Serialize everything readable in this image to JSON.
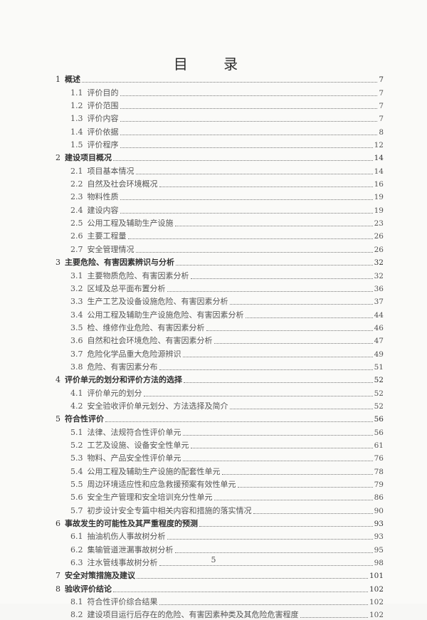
{
  "title": "目 录",
  "entries": [
    {
      "level": 1,
      "num": "1",
      "text": "概述",
      "page": "7"
    },
    {
      "level": 2,
      "num": "1.1",
      "text": "评价目的",
      "page": "7"
    },
    {
      "level": 2,
      "num": "1.2",
      "text": "评价范围",
      "page": "7"
    },
    {
      "level": 2,
      "num": "1.3",
      "text": "评价内容",
      "page": "7"
    },
    {
      "level": 2,
      "num": "1.4",
      "text": "评价依据",
      "page": "8"
    },
    {
      "level": 2,
      "num": "1.5",
      "text": "评价程序",
      "page": "12"
    },
    {
      "level": 1,
      "num": "2",
      "text": "建设项目概况",
      "page": "14"
    },
    {
      "level": 2,
      "num": "2.1",
      "text": "项目基本情况",
      "page": "14"
    },
    {
      "level": 2,
      "num": "2.2",
      "text": "自然及社会环境概况",
      "page": "16"
    },
    {
      "level": 2,
      "num": "2.3",
      "text": "物料性质",
      "page": "19"
    },
    {
      "level": 2,
      "num": "2.4",
      "text": "建设内容",
      "page": "19"
    },
    {
      "level": 2,
      "num": "2.5",
      "text": "公用工程及辅助生产设施",
      "page": "23"
    },
    {
      "level": 2,
      "num": "2.6",
      "text": "主要工程量",
      "page": "26"
    },
    {
      "level": 2,
      "num": "2.7",
      "text": "安全管理情况",
      "page": "26"
    },
    {
      "level": 1,
      "num": "3",
      "text": "主要危险、有害因素辨识与分析",
      "page": "32"
    },
    {
      "level": 2,
      "num": "3.1",
      "text": "主要物质危险、有害因素分析",
      "page": "32"
    },
    {
      "level": 2,
      "num": "3.2",
      "text": "区域及总平面布置分析",
      "page": "36"
    },
    {
      "level": 2,
      "num": "3.3",
      "text": "生产工艺及设备设施危险、有害因素分析",
      "page": "37"
    },
    {
      "level": 2,
      "num": "3.4",
      "text": "公用工程及辅助生产设施危险、有害因素分析",
      "page": "44"
    },
    {
      "level": 2,
      "num": "3.5",
      "text": "检、维修作业危险、有害因素分析",
      "page": "46"
    },
    {
      "level": 2,
      "num": "3.6",
      "text": "自然和社会环境危险、有害因素分析",
      "page": "47"
    },
    {
      "level": 2,
      "num": "3.7",
      "text": "危险化学品重大危险源辨识",
      "page": "49"
    },
    {
      "level": 2,
      "num": "3.8",
      "text": "危险、有害因素分布",
      "page": "51"
    },
    {
      "level": 1,
      "num": "4",
      "text": "评价单元的划分和评价方法的选择",
      "page": "52"
    },
    {
      "level": 2,
      "num": "4.1",
      "text": "评价单元的划分",
      "page": "52"
    },
    {
      "level": 2,
      "num": "4.2",
      "text": "安全验收评价单元划分、方法选择及简介",
      "page": "52"
    },
    {
      "level": 1,
      "num": "5",
      "text": "符合性评价",
      "page": "56"
    },
    {
      "level": 2,
      "num": "5.1",
      "text": "法律、法规符合性评价单元",
      "page": "56"
    },
    {
      "level": 2,
      "num": "5.2",
      "text": "工艺及设施、设备安全性单元",
      "page": "61"
    },
    {
      "level": 2,
      "num": "5.3",
      "text": "物料、产品安全性评价单元",
      "page": "76"
    },
    {
      "level": 2,
      "num": "5.4",
      "text": "公用工程及辅助生产设施的配套性单元",
      "page": "78"
    },
    {
      "level": 2,
      "num": "5.5",
      "text": "周边环境适应性和应急救援预案有效性单元",
      "page": "79"
    },
    {
      "level": 2,
      "num": "5.6",
      "text": "安全生产管理和安全培训充分性单元",
      "page": "86"
    },
    {
      "level": 2,
      "num": "5.7",
      "text": "初步设计安全专篇中相关内容和措施的落实情况",
      "page": "90"
    },
    {
      "level": 1,
      "num": "6",
      "text": "事故发生的可能性及其严重程度的预测",
      "page": "93"
    },
    {
      "level": 2,
      "num": "6.1",
      "text": "抽油机伤人事故树分析",
      "page": "93"
    },
    {
      "level": 2,
      "num": "6.2",
      "text": "集输管道泄漏事故树分析",
      "page": "95"
    },
    {
      "level": 2,
      "num": "6.3",
      "text": "注水管线事故树分析",
      "page": "98"
    },
    {
      "level": 1,
      "num": "7",
      "text": "安全对策措施及建议",
      "page": "101"
    },
    {
      "level": 1,
      "num": "8",
      "text": "验收评价结论",
      "page": "102"
    },
    {
      "level": 2,
      "num": "8.1",
      "text": "符合性评价综合结果",
      "page": "102"
    },
    {
      "level": 2,
      "num": "8.2",
      "text": "建设项目运行后存在的危险、有害因素种类及其危险危害程度",
      "page": "102"
    }
  ],
  "page_number": "5"
}
